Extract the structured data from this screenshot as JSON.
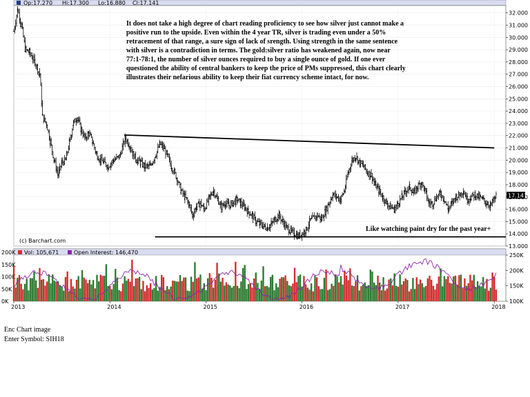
{
  "chart_data": [
    {
      "type": "ohlc",
      "header": {
        "open_label": "Op:17.270",
        "high_label": "Hi:17.300",
        "low_label": "Lo:16.880",
        "close_label": "Cl:17.141"
      },
      "last_price": 17.141,
      "last_price_label": "17.141",
      "y_ticks": [
        "13.000",
        "14.000",
        "15.000",
        "16.000",
        "17.000",
        "18.000",
        "19.000",
        "20.000",
        "21.000",
        "22.000",
        "23.000",
        "24.000",
        "25.000",
        "26.000",
        "27.000",
        "28.000",
        "29.000",
        "30.000",
        "31.000",
        "32.000"
      ],
      "ylim": [
        13,
        32.6
      ],
      "x_ticks": [
        "2013",
        "2014",
        "2015",
        "2016",
        "2017",
        "2018"
      ],
      "x_range": [
        "2013-01",
        "2018-01"
      ],
      "x_range_decimal": [
        2013.0,
        2018.02
      ],
      "approx_series": {
        "note": "approximate weekly closes read from chart (decimal year, price)",
        "points": [
          [
            2013.0,
            30.5
          ],
          [
            2013.04,
            32.3
          ],
          [
            2013.08,
            31.0
          ],
          [
            2013.12,
            29.0
          ],
          [
            2013.16,
            28.8
          ],
          [
            2013.22,
            28.0
          ],
          [
            2013.27,
            27.0
          ],
          [
            2013.3,
            23.5
          ],
          [
            2013.34,
            23.0
          ],
          [
            2013.38,
            21.5
          ],
          [
            2013.42,
            20.0
          ],
          [
            2013.46,
            18.8
          ],
          [
            2013.5,
            19.8
          ],
          [
            2013.54,
            20.0
          ],
          [
            2013.58,
            21.5
          ],
          [
            2013.62,
            23.0
          ],
          [
            2013.66,
            23.5
          ],
          [
            2013.7,
            22.5
          ],
          [
            2013.74,
            21.8
          ],
          [
            2013.78,
            22.2
          ],
          [
            2013.82,
            21.5
          ],
          [
            2013.86,
            20.5
          ],
          [
            2013.9,
            20.0
          ],
          [
            2013.94,
            19.8
          ],
          [
            2013.98,
            19.5
          ],
          [
            2014.04,
            20.0
          ],
          [
            2014.1,
            20.3
          ],
          [
            2014.16,
            21.8
          ],
          [
            2014.2,
            21.3
          ],
          [
            2014.24,
            20.5
          ],
          [
            2014.28,
            20.0
          ],
          [
            2014.32,
            19.8
          ],
          [
            2014.36,
            19.5
          ],
          [
            2014.42,
            19.5
          ],
          [
            2014.48,
            20.5
          ],
          [
            2014.52,
            21.3
          ],
          [
            2014.56,
            21.0
          ],
          [
            2014.6,
            20.3
          ],
          [
            2014.64,
            19.5
          ],
          [
            2014.7,
            18.5
          ],
          [
            2014.74,
            17.5
          ],
          [
            2014.78,
            17.0
          ],
          [
            2014.82,
            16.5
          ],
          [
            2014.86,
            15.5
          ],
          [
            2014.9,
            16.2
          ],
          [
            2014.94,
            16.5
          ],
          [
            2014.98,
            16.0
          ],
          [
            2015.04,
            17.0
          ],
          [
            2015.08,
            17.5
          ],
          [
            2015.12,
            16.8
          ],
          [
            2015.16,
            16.2
          ],
          [
            2015.2,
            16.5
          ],
          [
            2015.24,
            16.3
          ],
          [
            2015.28,
            16.5
          ],
          [
            2015.32,
            16.8
          ],
          [
            2015.36,
            16.5
          ],
          [
            2015.4,
            16.2
          ],
          [
            2015.44,
            15.8
          ],
          [
            2015.48,
            15.5
          ],
          [
            2015.52,
            15.0
          ],
          [
            2015.56,
            14.8
          ],
          [
            2015.6,
            14.6
          ],
          [
            2015.64,
            14.5
          ],
          [
            2015.68,
            14.8
          ],
          [
            2015.72,
            15.2
          ],
          [
            2015.76,
            15.5
          ],
          [
            2015.8,
            15.0
          ],
          [
            2015.84,
            14.5
          ],
          [
            2015.88,
            14.2
          ],
          [
            2015.92,
            14.0
          ],
          [
            2015.96,
            13.8
          ],
          [
            2016.0,
            14.0
          ],
          [
            2016.04,
            14.3
          ],
          [
            2016.08,
            15.0
          ],
          [
            2016.12,
            15.3
          ],
          [
            2016.16,
            15.5
          ],
          [
            2016.2,
            15.2
          ],
          [
            2016.24,
            15.8
          ],
          [
            2016.28,
            16.5
          ],
          [
            2016.32,
            17.2
          ],
          [
            2016.36,
            17.0
          ],
          [
            2016.4,
            16.8
          ],
          [
            2016.44,
            17.5
          ],
          [
            2016.48,
            19.0
          ],
          [
            2016.52,
            20.0
          ],
          [
            2016.56,
            20.3
          ],
          [
            2016.6,
            19.8
          ],
          [
            2016.64,
            19.5
          ],
          [
            2016.68,
            19.0
          ],
          [
            2016.72,
            18.8
          ],
          [
            2016.76,
            18.0
          ],
          [
            2016.8,
            17.5
          ],
          [
            2016.84,
            17.0
          ],
          [
            2016.88,
            16.5
          ],
          [
            2016.92,
            16.2
          ],
          [
            2016.96,
            16.0
          ],
          [
            2017.0,
            16.5
          ],
          [
            2017.04,
            17.0
          ],
          [
            2017.08,
            17.5
          ],
          [
            2017.12,
            17.8
          ],
          [
            2017.16,
            17.3
          ],
          [
            2017.2,
            17.8
          ],
          [
            2017.24,
            18.2
          ],
          [
            2017.28,
            17.5
          ],
          [
            2017.32,
            16.5
          ],
          [
            2017.36,
            16.5
          ],
          [
            2017.4,
            17.0
          ],
          [
            2017.44,
            17.3
          ],
          [
            2017.48,
            16.8
          ],
          [
            2017.52,
            16.0
          ],
          [
            2017.56,
            16.5
          ],
          [
            2017.6,
            17.0
          ],
          [
            2017.64,
            17.2
          ],
          [
            2017.68,
            17.5
          ],
          [
            2017.72,
            16.8
          ],
          [
            2017.76,
            17.0
          ],
          [
            2017.8,
            17.2
          ],
          [
            2017.84,
            17.0
          ],
          [
            2017.88,
            16.8
          ],
          [
            2017.92,
            16.5
          ],
          [
            2017.96,
            16.3
          ],
          [
            2018.0,
            16.8
          ],
          [
            2018.02,
            17.1
          ]
        ]
      },
      "trendlines": [
        {
          "start": [
            2014.15,
            22.05
          ],
          "end": [
            2018.0,
            21.0
          ]
        },
        {
          "start": [
            2014.47,
            13.75
          ],
          "end": [
            2018.12,
            13.75
          ]
        }
      ],
      "annotation": "It does not take a high degree of chart reading proficiency to see how silver just cannot make a positive run to the upside.  Even within the 4 year TR, silver is trading even under a 50% retracement of that range, a sure sign of lack of srength.  Using strength in the same sentence with silver is a contradiction in terms.  The gold:silver ratio has weakened again, now near 77:1-78:1, the number of silver ounces required to buy a single ounce of gold.  If one ever questioned the ability of central bankers to keep the price of PMs suppressed, this chart clearly illustrates their nefarious ability to keep their fiat currency scheme intact, for now.",
      "annotation_lines": [
        "It does not take a high degree of chart reading proficiency to see how silver just cannot make a",
        "positive run to the upside.   Even within the 4 year TR, silver is trading even under a 50%",
        "retracement of that range, a sure sign of lack of srength.  Using strength in the same sentence",
        "with silver is a contradiction in terms.  The gold:silver ratio has weakened again, now near",
        "77:1-78:1, the number of silver ounces required to buy a single ounce of gold.  If one ever",
        "questioned the ability of central bankers to keep the price of PMs suppressed, this chart clearly",
        "illustrates their nefarious ability to keep their fiat currency scheme intact, for now."
      ],
      "side_note": "Like watching paint dry for the past year+",
      "watermark": "(c) Barchart.com"
    },
    {
      "type": "bar+line",
      "volume_label": "Vol: 105,671",
      "oi_label": "Open Interest: 146,470",
      "left_ticks": [
        "0K",
        "50K",
        "100K",
        "150K",
        "200K"
      ],
      "right_ticks": [
        "100K",
        "150K",
        "200K",
        "250K"
      ],
      "left_range": [
        0,
        200000
      ],
      "right_range": [
        100000,
        250000
      ],
      "volume_up_color": "#2e7d32",
      "volume_down_color": "#d32f2f",
      "oi_color": "#8e24aa"
    }
  ],
  "footer": {
    "line1": "Enc Chart image",
    "line2": "Enter Symbol: SIH18"
  }
}
